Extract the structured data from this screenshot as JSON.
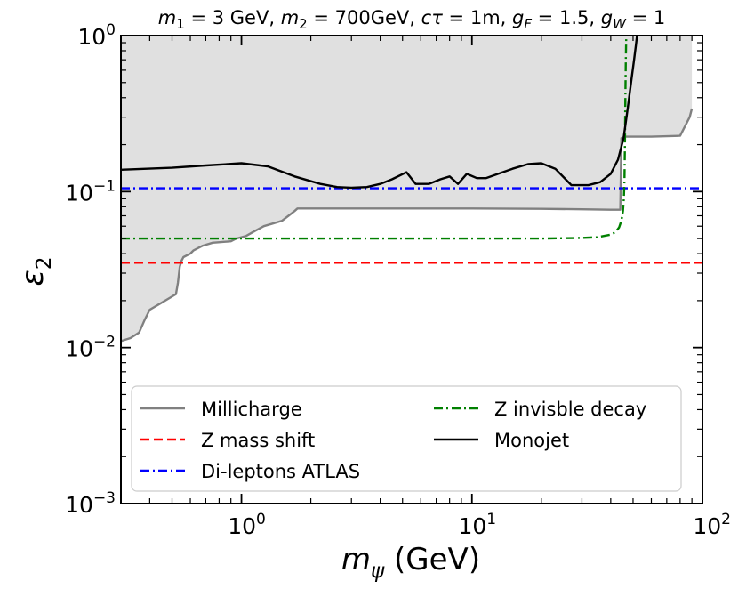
{
  "chart_data": {
    "type": "line",
    "title": {
      "m1": "3 GeV",
      "m2": "700GeV",
      "ctau": "1m",
      "gF": "1.5",
      "gW": "1"
    },
    "xlabel": {
      "symbol": "m",
      "subscript": "ψ",
      "unit": "(GeV)"
    },
    "ylabel": {
      "symbol": "ε",
      "subscript": "2"
    },
    "xscale": "log",
    "yscale": "log",
    "xlim": [
      0.3,
      100
    ],
    "ylim": [
      0.001,
      1
    ],
    "x_ticks": [
      {
        "value": 1,
        "base": "10",
        "exp": "0"
      },
      {
        "value": 10,
        "base": "10",
        "exp": "1"
      },
      {
        "value": 100,
        "base": "10",
        "exp": "2"
      }
    ],
    "y_ticks": [
      {
        "value": 0.001,
        "base": "10",
        "exp": "−3"
      },
      {
        "value": 0.01,
        "base": "10",
        "exp": "−2"
      },
      {
        "value": 0.1,
        "base": "10",
        "exp": "−1"
      },
      {
        "value": 1,
        "base": "10",
        "exp": "0"
      }
    ],
    "legend_position": "lower-left",
    "fill": {
      "name": "excluded-region",
      "color": "#e0e0e0"
    },
    "series": [
      {
        "name": "Millicharge",
        "color": "#808080",
        "style": "solid",
        "x": [
          0.3,
          0.33,
          0.36,
          0.38,
          0.4,
          0.44,
          0.48,
          0.52,
          0.53,
          0.54,
          0.55,
          0.56,
          0.6,
          0.62,
          0.68,
          0.75,
          0.9,
          0.95,
          1.05,
          1.12,
          1.25,
          1.35,
          1.5,
          1.6,
          1.7,
          1.75,
          2.0,
          5.0,
          10.0,
          20.0,
          30.0,
          40.0,
          44.0,
          44.5,
          46.0,
          60.0,
          80.0,
          88.0,
          90.0
        ],
        "y": [
          0.011,
          0.0115,
          0.0125,
          0.015,
          0.0175,
          0.019,
          0.0205,
          0.022,
          0.026,
          0.033,
          0.036,
          0.038,
          0.04,
          0.042,
          0.045,
          0.047,
          0.048,
          0.05,
          0.052,
          0.055,
          0.06,
          0.062,
          0.065,
          0.07,
          0.075,
          0.078,
          0.078,
          0.078,
          0.078,
          0.0775,
          0.077,
          0.0765,
          0.0765,
          0.22,
          0.225,
          0.225,
          0.228,
          0.3,
          0.34
        ]
      },
      {
        "name": "Z mass shift",
        "color": "#ff0000",
        "style": "dashed",
        "x": [
          0.3,
          100
        ],
        "y": [
          0.035,
          0.035
        ]
      },
      {
        "name": "Di-leptons ATLAS",
        "color": "#0000ff",
        "style": "dashdot",
        "x": [
          0.3,
          100
        ],
        "y": [
          0.105,
          0.105
        ]
      },
      {
        "name": "Z invisble decay",
        "color": "#008000",
        "style": "dashdot",
        "x": [
          0.3,
          10,
          20,
          30,
          35,
          40,
          42,
          43.5,
          44.5,
          45.2,
          45.6,
          45.9,
          46.1,
          46.3,
          46.5,
          46.7
        ],
        "y": [
          0.05,
          0.05,
          0.05,
          0.0505,
          0.051,
          0.053,
          0.055,
          0.059,
          0.065,
          0.075,
          0.09,
          0.12,
          0.2,
          0.4,
          0.7,
          1.0
        ]
      },
      {
        "name": "Monojet",
        "color": "#000000",
        "style": "solid",
        "x": [
          0.3,
          0.5,
          0.7,
          1.0,
          1.3,
          1.7,
          2.2,
          2.6,
          3.0,
          3.5,
          4.0,
          4.5,
          5.2,
          5.7,
          6.5,
          7.3,
          8.0,
          8.7,
          9.5,
          10.5,
          11.5,
          13.0,
          15.0,
          17.5,
          20.0,
          23.0,
          27.0,
          32.0,
          36.0,
          40.0,
          43.0,
          45.5,
          47.5,
          49.0,
          50.5,
          51.5,
          52.0
        ],
        "y": [
          0.138,
          0.142,
          0.147,
          0.152,
          0.145,
          0.125,
          0.112,
          0.107,
          0.106,
          0.107,
          0.112,
          0.12,
          0.133,
          0.112,
          0.112,
          0.12,
          0.125,
          0.112,
          0.13,
          0.122,
          0.122,
          0.13,
          0.14,
          0.15,
          0.152,
          0.14,
          0.11,
          0.11,
          0.115,
          0.13,
          0.16,
          0.22,
          0.35,
          0.5,
          0.7,
          0.88,
          1.0
        ]
      }
    ]
  }
}
